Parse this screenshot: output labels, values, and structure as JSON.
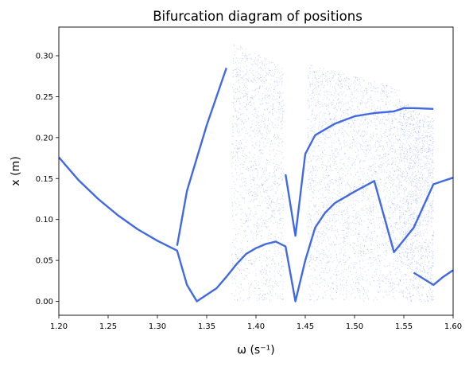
{
  "chart_data": {
    "type": "scatter",
    "title": "Bifurcation diagram of positions",
    "xlabel": "ω (s⁻¹)",
    "ylabel": "x (m)",
    "xlim": [
      1.2,
      1.6
    ],
    "ylim": [
      -0.017,
      0.335
    ],
    "x_ticks": [
      "1.20",
      "1.25",
      "1.30",
      "1.35",
      "1.40",
      "1.45",
      "1.50",
      "1.55",
      "1.60"
    ],
    "y_ticks": [
      "0.00",
      "0.05",
      "0.10",
      "0.15",
      "0.20",
      "0.25",
      "0.30"
    ],
    "x_tick_values": [
      1.2,
      1.25,
      1.3,
      1.35,
      1.4,
      1.45,
      1.5,
      1.55,
      1.6
    ],
    "y_tick_values": [
      0.0,
      0.05,
      0.1,
      0.15,
      0.2,
      0.25,
      0.3
    ],
    "grid": false,
    "marker_color": "#4169e1",
    "series": [
      {
        "x": [
          1.2,
          1.22,
          1.24,
          1.26,
          1.28,
          1.3,
          1.32,
          1.33,
          1.34,
          1.35,
          1.36,
          1.37,
          1.38,
          1.39,
          1.4,
          1.41,
          1.42,
          1.43,
          1.44,
          1.45,
          1.46,
          1.47,
          1.48,
          1.5,
          1.52,
          1.54,
          1.56,
          1.58,
          1.59,
          1.6
        ],
        "y": [
          0.176,
          0.148,
          0.125,
          0.105,
          0.088,
          0.074,
          0.062,
          0.02,
          0.0,
          0.008,
          0.016,
          0.03,
          0.045,
          0.058,
          0.065,
          0.07,
          0.073,
          0.067,
          0.0,
          0.05,
          0.09,
          0.108,
          0.12,
          0.134,
          0.147,
          0.06,
          0.09,
          0.143,
          0.147,
          0.151
        ]
      },
      {
        "x": [
          1.32,
          1.33,
          1.34,
          1.35,
          1.36,
          1.37
        ],
        "y": [
          0.068,
          0.135,
          0.175,
          0.215,
          0.25,
          0.285
        ]
      },
      {
        "x": [
          1.43,
          1.44,
          1.45,
          1.46,
          1.48,
          1.5,
          1.52,
          1.54,
          1.55,
          1.56,
          1.58
        ],
        "y": [
          0.155,
          0.08,
          0.18,
          0.203,
          0.217,
          0.226,
          0.23,
          0.232,
          0.236,
          0.236,
          0.235
        ]
      },
      {
        "x": [
          1.56,
          1.58,
          1.59,
          1.6
        ],
        "y": [
          0.035,
          0.02,
          0.03,
          0.038
        ]
      }
    ],
    "chaotic_bands": [
      {
        "x_range": [
          1.375,
          1.428
        ],
        "y_range": [
          0.0,
          0.318
        ]
      },
      {
        "x_range": [
          1.452,
          1.545
        ],
        "y_range": [
          0.0,
          0.29
        ]
      },
      {
        "x_range": [
          1.545,
          1.58
        ],
        "y_range": [
          0.0,
          0.248
        ]
      }
    ]
  }
}
